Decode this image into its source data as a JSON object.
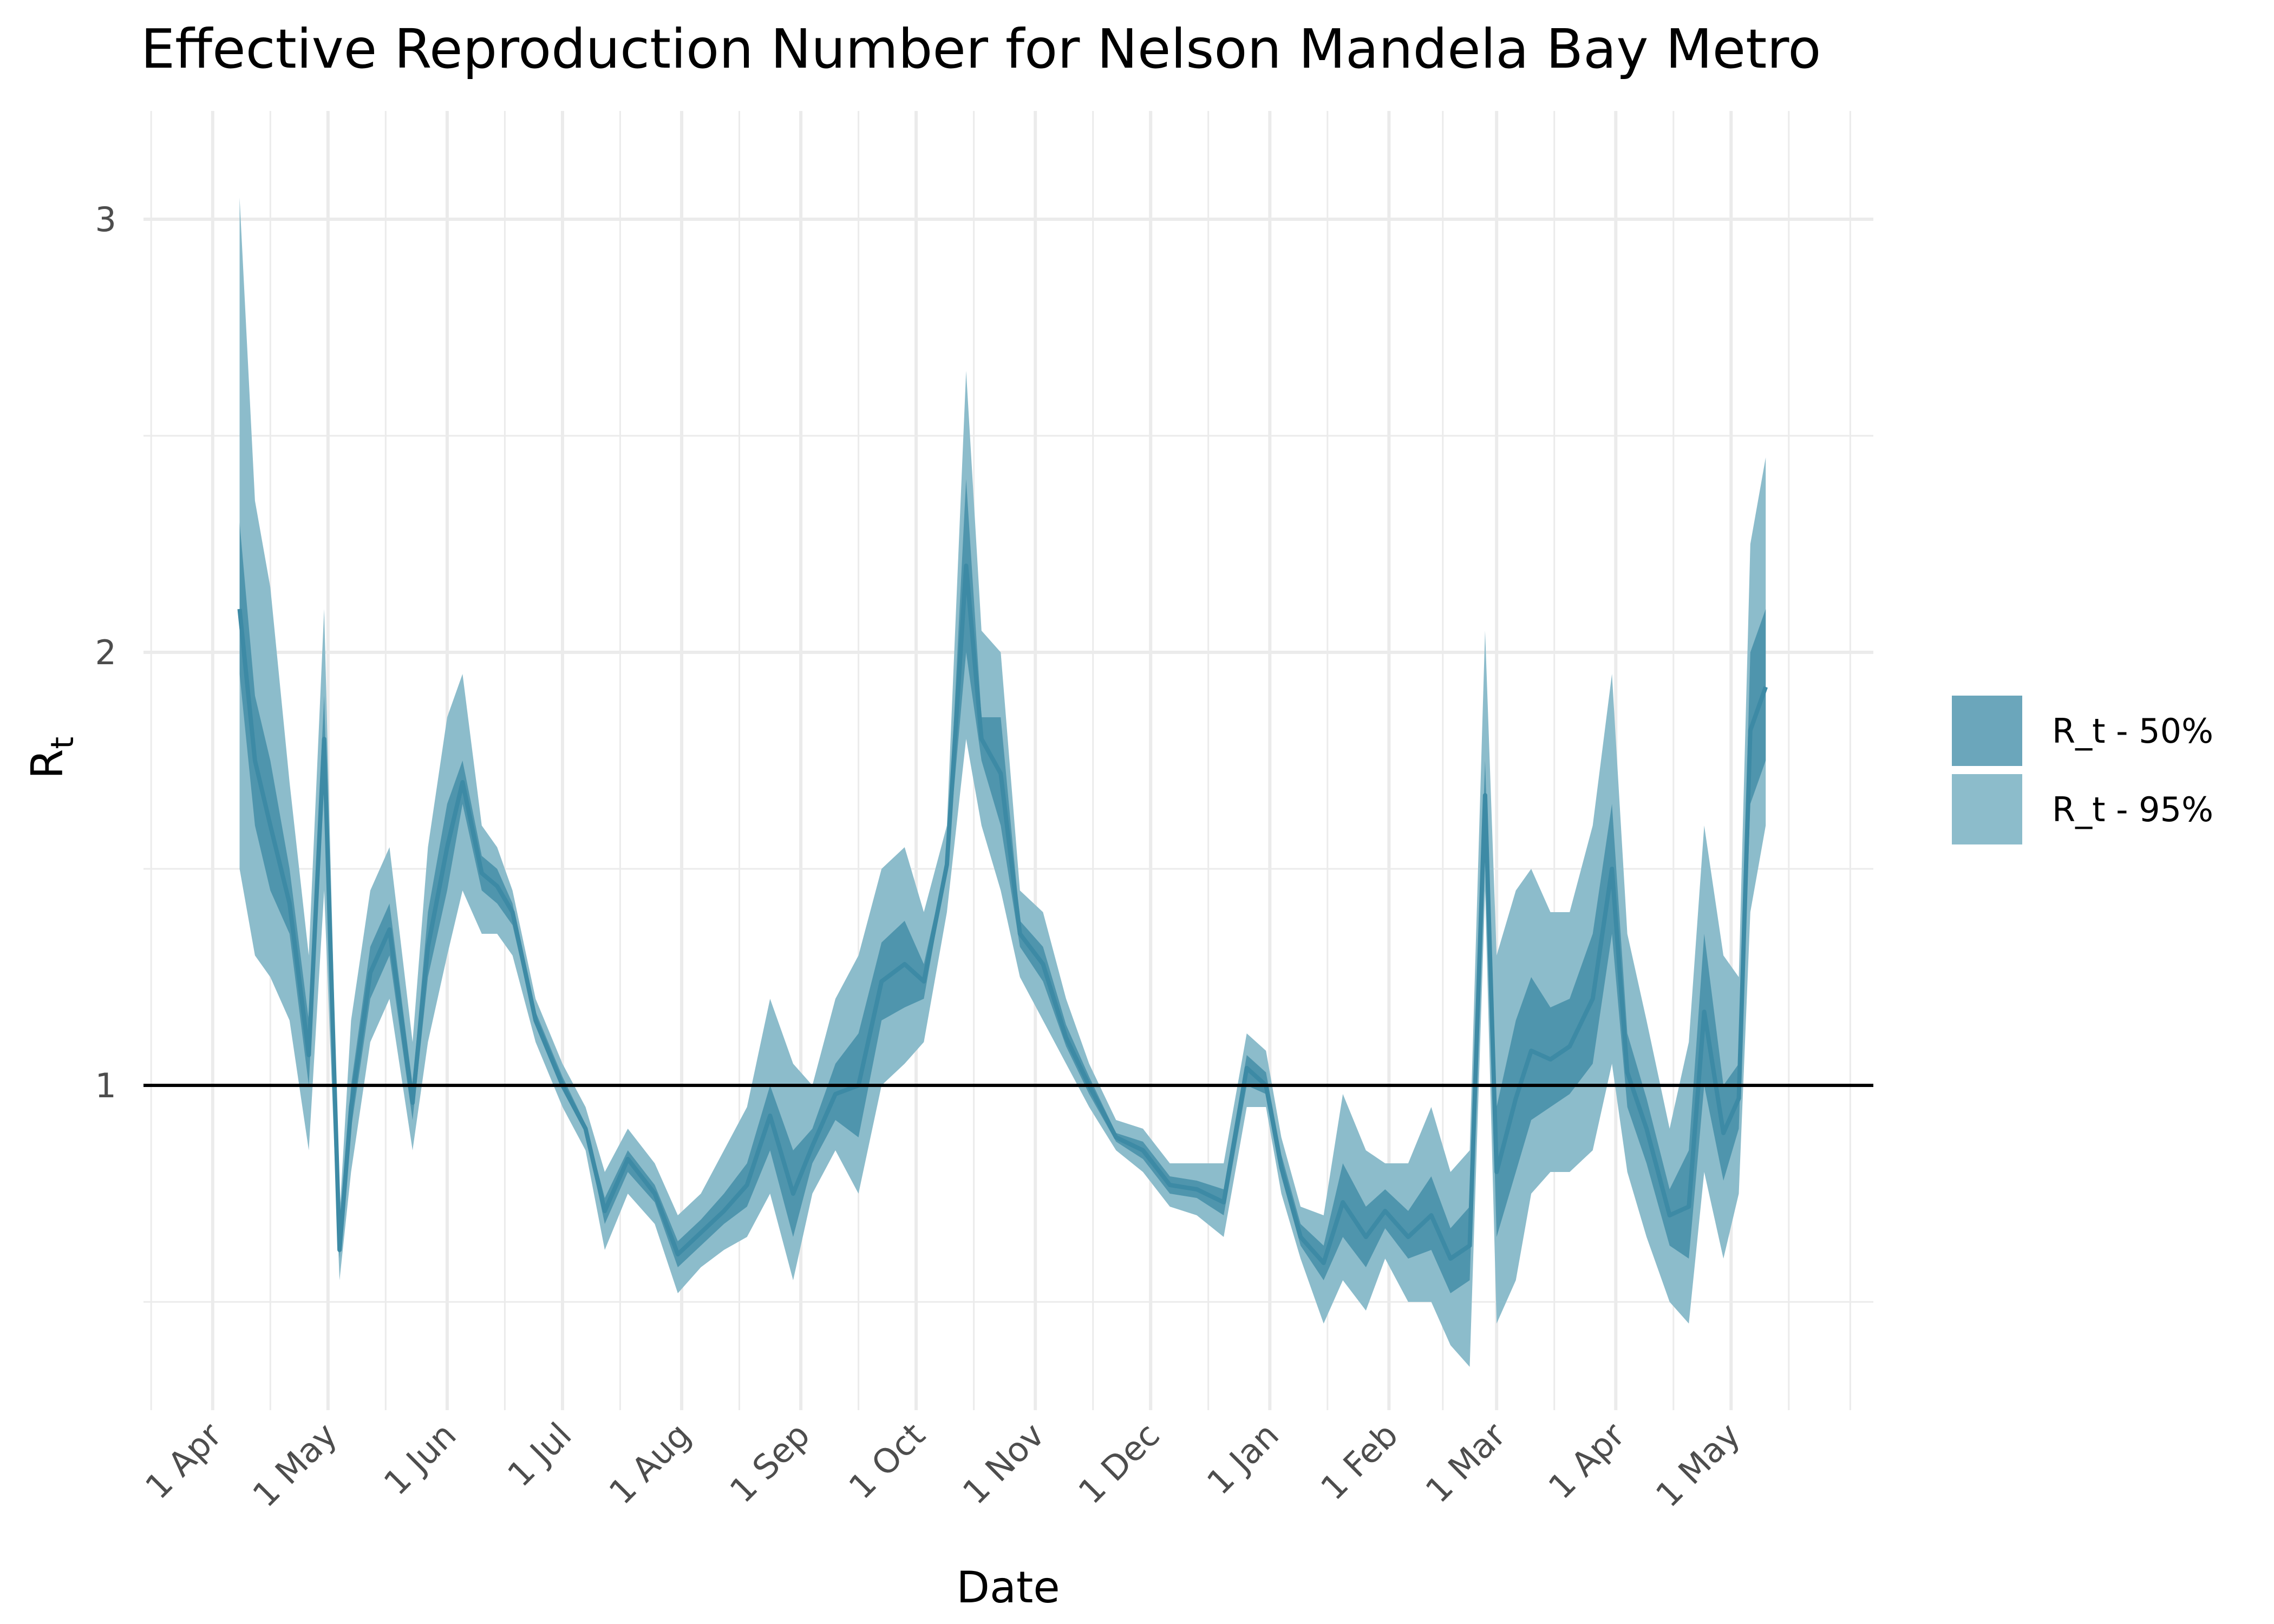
{
  "chart_data": {
    "type": "area",
    "title": "Effective Reproduction Number for Nelson Mandela Bay Metro",
    "xlabel": "Date",
    "ylabel_main": "R",
    "ylabel_sub": "t",
    "x_ticks": [
      "1 Apr",
      "1 May",
      "1 Jun",
      "1 Jul",
      "1 Aug",
      "1 Sep",
      "1 Oct",
      "1 Nov",
      "1 Dec",
      "1 Jan",
      "1 Feb",
      "1 Mar",
      "1 Apr",
      "1 May"
    ],
    "y_ticks": [
      "1",
      "2",
      "3"
    ],
    "ylim": [
      0.25,
      3.25
    ],
    "reference_line": 1,
    "legend": [
      {
        "label": "R_t - 50%",
        "color": "#6ba6bb"
      },
      {
        "label": "R_t - 95%",
        "color": "#8cbccb"
      }
    ],
    "legend_position": "right",
    "colors": {
      "band95": "#8cbccb",
      "band50": "#4f95ad",
      "median": "#3d8aa5",
      "grid": "#ebebeb",
      "refline": "#000000"
    },
    "series": [
      {
        "name": "R_t - 95%",
        "x": [
          "2020-04-08",
          "2020-04-12",
          "2020-04-16",
          "2020-04-21",
          "2020-04-26",
          "2020-04-30",
          "2020-05-04",
          "2020-05-07",
          "2020-05-12",
          "2020-05-17",
          "2020-05-23",
          "2020-05-27",
          "2020-06-01",
          "2020-06-05",
          "2020-06-10",
          "2020-06-14",
          "2020-06-18",
          "2020-06-24",
          "2020-07-01",
          "2020-07-07",
          "2020-07-12",
          "2020-07-18",
          "2020-07-25",
          "2020-07-31",
          "2020-08-06",
          "2020-08-12",
          "2020-08-18",
          "2020-08-24",
          "2020-08-30",
          "2020-09-04",
          "2020-09-10",
          "2020-09-16",
          "2020-09-22",
          "2020-09-28",
          "2020-10-03",
          "2020-10-09",
          "2020-10-14",
          "2020-10-18",
          "2020-10-23",
          "2020-10-28",
          "2020-11-03",
          "2020-11-09",
          "2020-11-15",
          "2020-11-22",
          "2020-11-29",
          "2020-12-06",
          "2020-12-13",
          "2020-12-20",
          "2020-12-26",
          "2020-12-31",
          "2021-01-04",
          "2021-01-09",
          "2021-01-15",
          "2021-01-20",
          "2021-01-26",
          "2021-01-31",
          "2021-02-06",
          "2021-02-12",
          "2021-02-17",
          "2021-02-22",
          "2021-02-26",
          "2021-03-01",
          "2021-03-06",
          "2021-03-10",
          "2021-03-15",
          "2021-03-20",
          "2021-03-26",
          "2021-03-31",
          "2021-04-04",
          "2021-04-09",
          "2021-04-15",
          "2021-04-20",
          "2021-04-24",
          "2021-04-29",
          "2021-05-03",
          "2021-05-06",
          "2021-05-10"
        ],
        "lower": [
          1.5,
          1.3,
          1.25,
          1.15,
          0.85,
          1.45,
          0.55,
          0.8,
          1.1,
          1.2,
          0.85,
          1.1,
          1.3,
          1.45,
          1.35,
          1.35,
          1.3,
          1.1,
          0.95,
          0.85,
          0.62,
          0.75,
          0.68,
          0.52,
          0.58,
          0.62,
          0.65,
          0.75,
          0.55,
          0.75,
          0.85,
          0.75,
          1.0,
          1.05,
          1.1,
          1.4,
          1.8,
          1.6,
          1.45,
          1.25,
          1.15,
          1.05,
          0.95,
          0.85,
          0.8,
          0.72,
          0.7,
          0.65,
          0.95,
          0.95,
          0.75,
          0.6,
          0.45,
          0.55,
          0.48,
          0.6,
          0.5,
          0.5,
          0.4,
          0.35,
          1.45,
          0.45,
          0.55,
          0.75,
          0.8,
          0.8,
          0.85,
          1.05,
          0.8,
          0.65,
          0.5,
          0.45,
          0.8,
          0.6,
          0.75,
          1.4,
          1.6
        ],
        "upper": [
          3.05,
          2.35,
          2.15,
          1.7,
          1.3,
          2.1,
          0.7,
          1.15,
          1.45,
          1.55,
          1.1,
          1.55,
          1.85,
          1.95,
          1.6,
          1.55,
          1.45,
          1.2,
          1.05,
          0.95,
          0.8,
          0.9,
          0.82,
          0.7,
          0.75,
          0.85,
          0.95,
          1.2,
          1.05,
          1.0,
          1.2,
          1.3,
          1.5,
          1.55,
          1.4,
          1.6,
          2.65,
          2.05,
          2.0,
          1.45,
          1.4,
          1.2,
          1.05,
          0.92,
          0.9,
          0.82,
          0.82,
          0.82,
          1.12,
          1.08,
          0.88,
          0.72,
          0.7,
          0.98,
          0.85,
          0.82,
          0.82,
          0.95,
          0.8,
          0.85,
          2.05,
          1.3,
          1.45,
          1.5,
          1.4,
          1.4,
          1.6,
          1.95,
          1.35,
          1.15,
          0.9,
          1.1,
          1.6,
          1.3,
          1.25,
          2.25,
          2.45
        ]
      },
      {
        "name": "R_t - 50%",
        "x": [
          "2020-04-08",
          "2020-04-12",
          "2020-04-16",
          "2020-04-21",
          "2020-04-26",
          "2020-04-30",
          "2020-05-04",
          "2020-05-07",
          "2020-05-12",
          "2020-05-17",
          "2020-05-23",
          "2020-05-27",
          "2020-06-01",
          "2020-06-05",
          "2020-06-10",
          "2020-06-14",
          "2020-06-18",
          "2020-06-24",
          "2020-07-01",
          "2020-07-07",
          "2020-07-12",
          "2020-07-18",
          "2020-07-25",
          "2020-07-31",
          "2020-08-06",
          "2020-08-12",
          "2020-08-18",
          "2020-08-24",
          "2020-08-30",
          "2020-09-04",
          "2020-09-10",
          "2020-09-16",
          "2020-09-22",
          "2020-09-28",
          "2020-10-03",
          "2020-10-09",
          "2020-10-14",
          "2020-10-18",
          "2020-10-23",
          "2020-10-28",
          "2020-11-03",
          "2020-11-09",
          "2020-11-15",
          "2020-11-22",
          "2020-11-29",
          "2020-12-06",
          "2020-12-13",
          "2020-12-20",
          "2020-12-26",
          "2020-12-31",
          "2021-01-04",
          "2021-01-09",
          "2021-01-15",
          "2021-01-20",
          "2021-01-26",
          "2021-01-31",
          "2021-02-06",
          "2021-02-12",
          "2021-02-17",
          "2021-02-22",
          "2021-02-26",
          "2021-03-01",
          "2021-03-06",
          "2021-03-10",
          "2021-03-15",
          "2021-03-20",
          "2021-03-26",
          "2021-03-31",
          "2021-04-04",
          "2021-04-09",
          "2021-04-15",
          "2021-04-20",
          "2021-04-24",
          "2021-04-29",
          "2021-05-03",
          "2021-05-06",
          "2021-05-10"
        ],
        "lower": [
          1.95,
          1.6,
          1.45,
          1.35,
          1.0,
          1.7,
          0.6,
          0.9,
          1.2,
          1.3,
          0.92,
          1.25,
          1.45,
          1.65,
          1.45,
          1.42,
          1.37,
          1.14,
          0.99,
          0.89,
          0.68,
          0.8,
          0.73,
          0.58,
          0.63,
          0.68,
          0.72,
          0.85,
          0.65,
          0.82,
          0.92,
          0.88,
          1.15,
          1.18,
          1.2,
          1.5,
          2.0,
          1.75,
          1.6,
          1.32,
          1.24,
          1.09,
          0.98,
          0.87,
          0.83,
          0.75,
          0.74,
          0.7,
          1.0,
          0.98,
          0.79,
          0.63,
          0.55,
          0.65,
          0.58,
          0.67,
          0.6,
          0.62,
          0.52,
          0.55,
          1.6,
          0.65,
          0.8,
          0.92,
          0.95,
          0.98,
          1.05,
          1.35,
          0.95,
          0.82,
          0.63,
          0.6,
          1.0,
          0.78,
          0.9,
          1.65,
          1.75
        ],
        "upper": [
          2.3,
          1.9,
          1.75,
          1.5,
          1.15,
          1.9,
          0.65,
          1.0,
          1.32,
          1.42,
          1.0,
          1.4,
          1.65,
          1.75,
          1.53,
          1.5,
          1.42,
          1.17,
          1.02,
          0.91,
          0.74,
          0.85,
          0.77,
          0.64,
          0.69,
          0.75,
          0.82,
          1.0,
          0.85,
          0.9,
          1.05,
          1.12,
          1.33,
          1.38,
          1.28,
          1.52,
          2.4,
          1.85,
          1.85,
          1.38,
          1.32,
          1.14,
          1.02,
          0.89,
          0.87,
          0.79,
          0.78,
          0.76,
          1.07,
          1.03,
          0.84,
          0.68,
          0.63,
          0.82,
          0.72,
          0.76,
          0.71,
          0.79,
          0.67,
          0.72,
          1.75,
          0.95,
          1.15,
          1.25,
          1.18,
          1.2,
          1.35,
          1.65,
          1.12,
          0.97,
          0.76,
          0.85,
          1.35,
          1.0,
          1.05,
          2.0,
          2.1
        ]
      },
      {
        "name": "median",
        "x": [
          "2020-04-08",
          "2020-04-12",
          "2020-04-16",
          "2020-04-21",
          "2020-04-26",
          "2020-04-30",
          "2020-05-04",
          "2020-05-07",
          "2020-05-12",
          "2020-05-17",
          "2020-05-23",
          "2020-05-27",
          "2020-06-01",
          "2020-06-05",
          "2020-06-10",
          "2020-06-14",
          "2020-06-18",
          "2020-06-24",
          "2020-07-01",
          "2020-07-07",
          "2020-07-12",
          "2020-07-18",
          "2020-07-25",
          "2020-07-31",
          "2020-08-06",
          "2020-08-12",
          "2020-08-18",
          "2020-08-24",
          "2020-08-30",
          "2020-09-04",
          "2020-09-10",
          "2020-09-16",
          "2020-09-22",
          "2020-09-28",
          "2020-10-03",
          "2020-10-09",
          "2020-10-14",
          "2020-10-18",
          "2020-10-23",
          "2020-10-28",
          "2020-11-03",
          "2020-11-09",
          "2020-11-15",
          "2020-11-22",
          "2020-11-29",
          "2020-12-06",
          "2020-12-13",
          "2020-12-20",
          "2020-12-26",
          "2020-12-31",
          "2021-01-04",
          "2021-01-09",
          "2021-01-15",
          "2021-01-20",
          "2021-01-26",
          "2021-01-31",
          "2021-02-06",
          "2021-02-12",
          "2021-02-17",
          "2021-02-22",
          "2021-02-26",
          "2021-03-01",
          "2021-03-06",
          "2021-03-10",
          "2021-03-15",
          "2021-03-20",
          "2021-03-26",
          "2021-03-31",
          "2021-04-04",
          "2021-04-09",
          "2021-04-15",
          "2021-04-20",
          "2021-04-24",
          "2021-04-29",
          "2021-05-03",
          "2021-05-06",
          "2021-05-10"
        ],
        "values": [
          2.1,
          1.75,
          1.6,
          1.42,
          1.07,
          1.8,
          0.62,
          0.95,
          1.26,
          1.36,
          0.96,
          1.32,
          1.55,
          1.7,
          1.49,
          1.46,
          1.4,
          1.15,
          1.0,
          0.9,
          0.71,
          0.83,
          0.75,
          0.61,
          0.66,
          0.71,
          0.77,
          0.93,
          0.75,
          0.86,
          0.98,
          1.0,
          1.24,
          1.28,
          1.24,
          1.51,
          2.2,
          1.8,
          1.72,
          1.35,
          1.28,
          1.11,
          1.0,
          0.88,
          0.85,
          0.77,
          0.76,
          0.73,
          1.04,
          1.0,
          0.81,
          0.65,
          0.59,
          0.73,
          0.65,
          0.71,
          0.65,
          0.7,
          0.6,
          0.63,
          1.67,
          0.8,
          0.97,
          1.08,
          1.06,
          1.09,
          1.2,
          1.5,
          1.03,
          0.9,
          0.7,
          0.72,
          1.17,
          0.89,
          0.97,
          1.82,
          1.92
        ]
      }
    ]
  }
}
